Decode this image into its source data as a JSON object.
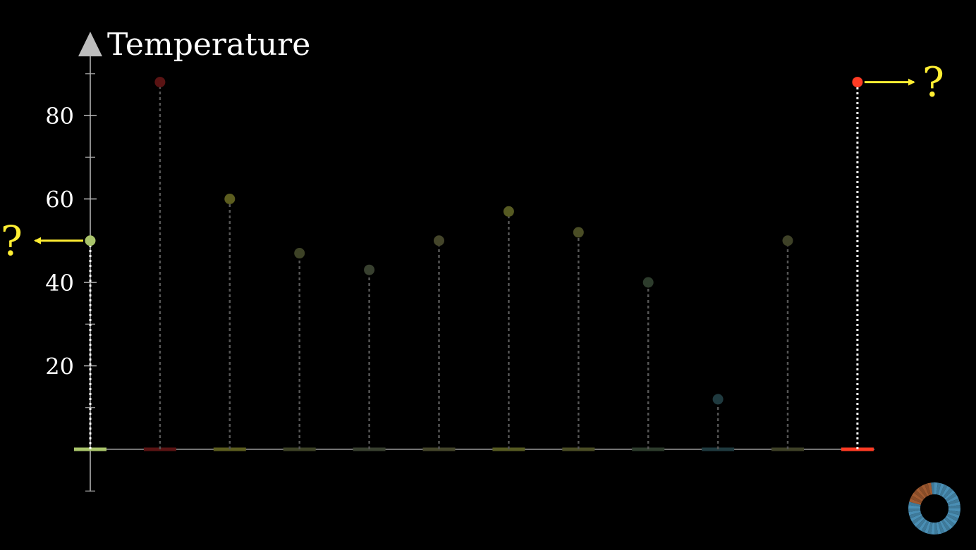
{
  "chart_data": {
    "type": "scatter",
    "ylabel": "Temperature",
    "ylim": [
      -10,
      90
    ],
    "y_ticks": [
      20,
      40,
      60,
      80
    ],
    "y_minor_ticks": [
      -10,
      10,
      30,
      50,
      70,
      90
    ],
    "points": [
      {
        "x": 0,
        "y": 50,
        "color": "#a9c46b",
        "highlight": true
      },
      {
        "x": 1,
        "y": 88,
        "color": "#5a1313",
        "highlight": false
      },
      {
        "x": 2,
        "y": 60,
        "color": "#5c5d1f",
        "highlight": false
      },
      {
        "x": 3,
        "y": 47,
        "color": "#3d4226",
        "highlight": false
      },
      {
        "x": 4,
        "y": 43,
        "color": "#38402f",
        "highlight": false
      },
      {
        "x": 5,
        "y": 50,
        "color": "#44452a",
        "highlight": false
      },
      {
        "x": 6,
        "y": 57,
        "color": "#565a22",
        "highlight": false
      },
      {
        "x": 7,
        "y": 52,
        "color": "#4a4d25",
        "highlight": false
      },
      {
        "x": 8,
        "y": 40,
        "color": "#2d3c2c",
        "highlight": false
      },
      {
        "x": 9,
        "y": 12,
        "color": "#1f3a3f",
        "highlight": false
      },
      {
        "x": 10,
        "y": 50,
        "color": "#3e4127",
        "highlight": false
      },
      {
        "x": 11,
        "y": 88,
        "color": "#ff3b24",
        "highlight": true
      }
    ],
    "annotations": [
      {
        "label": "?",
        "color": "#ffee33",
        "point_index": 0,
        "direction": "left"
      },
      {
        "label": "?",
        "color": "#ffee33",
        "point_index": 11,
        "direction": "right"
      }
    ]
  },
  "spinner": {
    "icon": "loading-ring-icon",
    "colors": [
      "#4a8fb5",
      "#a05a30"
    ]
  }
}
